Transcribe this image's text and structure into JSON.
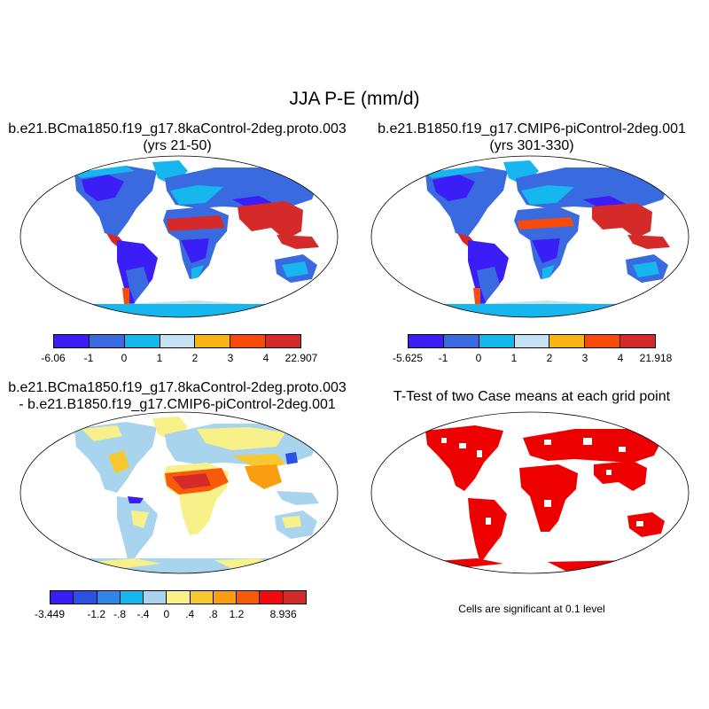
{
  "figure": {
    "title": "JJA P-E (mm/d)"
  },
  "panels": {
    "top_left": {
      "title_line1": "b.e21.BCma1850.f19_g17.8kaControl-2deg.proto.003",
      "title_line2": "(yrs 21-50)",
      "colorbar": {
        "colors": [
          "#3a1ef5",
          "#3a6ae0",
          "#16b6ee",
          "#c4e2f4",
          "#f8b418",
          "#f84a0a",
          "#d42a2a"
        ],
        "labels": [
          "-6.06",
          "-1",
          "0",
          "1",
          "2",
          "3",
          "4",
          "22.907"
        ]
      }
    },
    "top_right": {
      "title_line1": "b.e21.B1850.f19_g17.CMIP6-piControl-2deg.001",
      "title_line2": "(yrs 301-330)",
      "colorbar": {
        "colors": [
          "#3a1ef5",
          "#3a6ae0",
          "#16b6ee",
          "#c4e2f4",
          "#f8b418",
          "#f84a0a",
          "#d42a2a"
        ],
        "labels": [
          "-5.625",
          "-1",
          "0",
          "1",
          "2",
          "3",
          "4",
          "21.918"
        ]
      }
    },
    "bottom_left": {
      "title_line1": "b.e21.BCma1850.f19_g17.8kaControl-2deg.proto.003",
      "title_line2": "- b.e21.B1850.f19_g17.CMIP6-piControl-2deg.001",
      "colorbar": {
        "colors": [
          "#3a1ef5",
          "#2a50e4",
          "#2e86e6",
          "#16b6ee",
          "#a8d4ee",
          "#f8f088",
          "#f8c830",
          "#f89e10",
          "#f85a0a",
          "#f40a0a",
          "#d42a2a"
        ],
        "labels": [
          "-3.449",
          "",
          "-1.2",
          "-.8",
          "-.4",
          "0",
          ".4",
          ".8",
          "1.2",
          "",
          "8.936"
        ]
      }
    },
    "bottom_right": {
      "title": "T-Test of two Case means at each grid point",
      "note": "Cells are significant at 0.1 level",
      "significant_color": "#ee0000"
    }
  }
}
